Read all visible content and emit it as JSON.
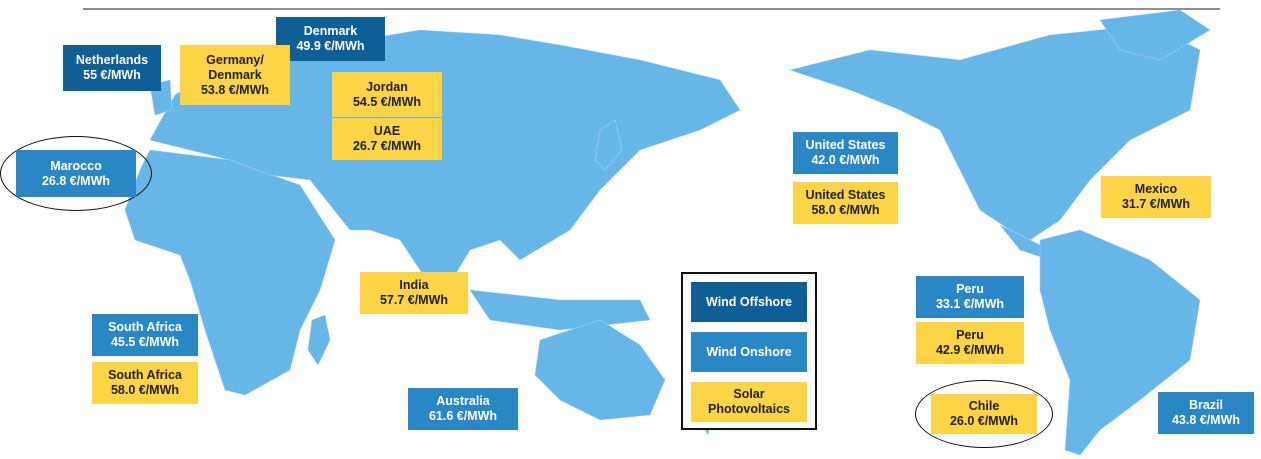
{
  "boxes": [
    {
      "name": "Netherlands",
      "price": "55 €/MWh",
      "color": "#0d5f95",
      "highlight": false
    },
    {
      "name": "Denmark",
      "price": "49.9 €/MWh",
      "color": "#0d5f95",
      "highlight": false
    },
    {
      "name": "Germany/ Denmark",
      "price": "53.8 €/MWh",
      "color": "#fdd446",
      "highlight": false
    },
    {
      "name": "Jordan",
      "price": "54.5 €/MWh",
      "color": "#fdd446",
      "highlight": false
    },
    {
      "name": "UAE",
      "price": "26.7 €/MWh",
      "color": "#fdd446",
      "highlight": false
    },
    {
      "name": "Marocco",
      "price": "26.8 €/MWh",
      "color": "#2a87c6",
      "highlight": true
    },
    {
      "name": "United States",
      "price": "42.0 €/MWh",
      "color": "#2a87c6",
      "highlight": false
    },
    {
      "name": "United States",
      "price": "58.0 €/MWh",
      "color": "#fdd446",
      "highlight": false
    },
    {
      "name": "Mexico",
      "price": "31.7 €/MWh",
      "color": "#fdd446",
      "highlight": false
    },
    {
      "name": "India",
      "price": "57.7 €/MWh",
      "color": "#fdd446",
      "highlight": false
    },
    {
      "name": "Peru",
      "price": "33.1 €/MWh",
      "color": "#2a87c6",
      "highlight": false
    },
    {
      "name": "Peru",
      "price": "42.9 €/MWh",
      "color": "#fdd446",
      "highlight": false
    },
    {
      "name": "South Africa",
      "price": "45.5 €/MWh",
      "color": "#2a87c6",
      "highlight": false
    },
    {
      "name": "South Africa",
      "price": "58.0 €/MWh",
      "color": "#fdd446",
      "highlight": false
    },
    {
      "name": "Australia",
      "price": "61.6 €/MWh",
      "color": "#2a87c6",
      "highlight": false
    },
    {
      "name": "Chile",
      "price": "26.0 €/MWh",
      "color": "#fdd446",
      "highlight": true
    },
    {
      "name": "Brazil",
      "price": "43.8 €/MWh",
      "color": "#2a87c6",
      "highlight": false
    }
  ],
  "legend": [
    {
      "label": "Wind Offshore",
      "color": "#0d5f95"
    },
    {
      "label": "Wind Onshore",
      "color": "#2a87c6"
    },
    {
      "label": "Solar Photovoltaics",
      "color": "#fdd446"
    }
  ]
}
